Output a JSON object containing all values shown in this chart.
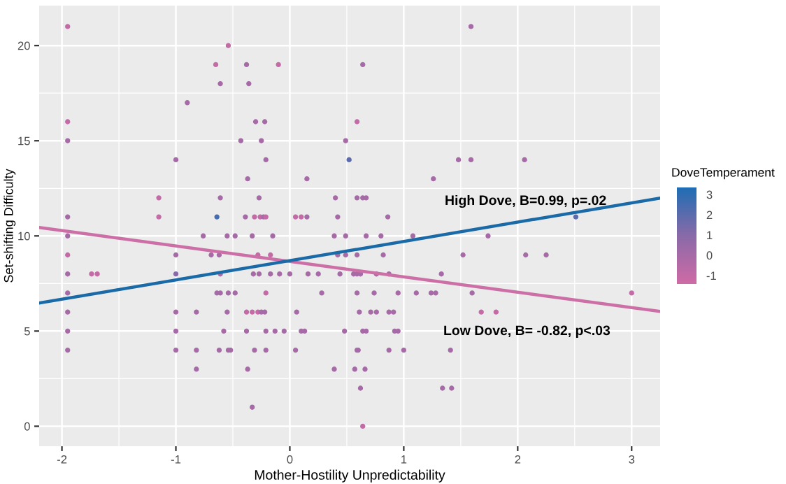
{
  "chart_data": {
    "type": "scatter",
    "xlabel": "Mother-Hostility Unpredictability",
    "ylabel": "Set-shifting Difficulty",
    "clabel": "DoveTemperament",
    "xlim": [
      -2.2,
      3.25
    ],
    "ylim": [
      -1.05,
      22.1
    ],
    "xticks": [
      -2,
      -1,
      0,
      1,
      2,
      3
    ],
    "yticks": [
      0,
      5,
      10,
      15,
      20
    ],
    "clim": [
      -1.42,
      3.35
    ],
    "cticks": [
      -1,
      0,
      1,
      2,
      3
    ],
    "grid": true,
    "series": [
      {
        "marker": "circle",
        "x": [
          -1.95,
          1.59,
          -0.54,
          -0.65,
          -0.38,
          -0.1,
          0.64,
          -0.61,
          -0.36,
          -0.9,
          -1.95,
          -0.3,
          -0.22,
          0.59,
          -1.95,
          -0.43,
          -0.25,
          0.49,
          -1.0,
          -0.21,
          0.52,
          1.48,
          1.59,
          2.06,
          -0.37,
          0.15,
          1.26,
          -1.15,
          -0.61,
          -0.27,
          0.4,
          0.59,
          0.64,
          0.67,
          -1.95,
          -1.15,
          -0.64,
          -0.39,
          -0.31,
          -0.26,
          -0.23,
          -0.21,
          0.05,
          0.1,
          0.15,
          0.42,
          0.86,
          2.51,
          -1.95,
          -0.76,
          -0.55,
          -0.48,
          -0.33,
          -0.15,
          0.39,
          0.49,
          0.67,
          0.8,
          1.08,
          1.74,
          -1.95,
          -1.0,
          -0.69,
          -0.62,
          -0.28,
          -0.17,
          0.42,
          0.49,
          0.59,
          0.82,
          1.52,
          2.07,
          2.25,
          -1.95,
          -1.74,
          -1.69,
          -1.0,
          -0.61,
          -0.32,
          -0.27,
          -0.17,
          -0.09,
          0.0,
          0.16,
          0.25,
          0.44,
          0.56,
          0.59,
          0.62,
          0.76,
          0.87,
          1.33,
          -1.95,
          -0.64,
          -0.61,
          -0.54,
          -0.48,
          -0.21,
          0.28,
          0.59,
          0.74,
          0.95,
          1.11,
          1.24,
          1.28,
          1.6,
          3.0,
          -1.95,
          -1.0,
          -0.82,
          -0.55,
          -0.38,
          -0.33,
          -0.28,
          -0.25,
          -0.22,
          0.06,
          0.61,
          0.71,
          0.76,
          0.87,
          0.91,
          1.68,
          1.81,
          -1.95,
          -1.0,
          -0.58,
          -0.38,
          -0.21,
          -0.13,
          -0.05,
          0.1,
          0.13,
          0.48,
          0.64,
          0.67,
          0.92,
          0.95,
          -1.95,
          -1.0,
          -0.82,
          -0.62,
          -0.54,
          -0.52,
          -0.31,
          -0.21,
          0.05,
          0.59,
          0.6,
          0.87,
          1.0,
          1.41,
          -0.82,
          -0.37,
          0.39,
          0.57,
          0.66,
          0.62,
          1.34,
          1.42,
          -0.33,
          0.64
        ],
        "values": [
          21,
          21,
          20,
          19,
          19,
          19,
          19,
          18,
          18,
          17,
          16,
          16,
          16,
          16,
          15,
          15,
          15,
          15,
          14,
          14,
          14,
          14,
          14,
          14,
          13,
          13,
          13,
          12,
          12,
          12,
          12,
          12,
          12,
          12,
          11,
          11,
          11,
          11,
          11,
          11,
          11,
          11,
          11,
          11,
          11,
          11,
          11,
          11,
          10,
          10,
          10,
          10,
          10,
          10,
          10,
          10,
          10,
          10,
          10,
          10,
          9,
          9,
          9,
          9,
          9,
          9,
          9,
          9,
          9,
          9,
          9,
          9,
          9,
          8,
          8,
          8,
          8,
          8,
          8,
          8,
          8,
          8,
          8,
          8,
          8,
          8,
          8,
          8,
          8,
          8,
          8,
          8,
          7,
          7,
          7,
          7,
          7,
          7,
          7,
          7,
          7,
          7,
          7,
          7,
          7,
          7,
          7,
          6,
          6,
          6,
          6,
          6,
          6,
          6,
          6,
          6,
          6,
          6,
          6,
          6,
          6,
          6,
          6,
          6,
          5,
          5,
          5,
          5,
          5,
          5,
          5,
          5,
          5,
          5,
          5,
          5,
          5,
          5,
          4,
          4,
          4,
          4,
          4,
          4,
          4,
          4,
          4,
          4,
          4,
          4,
          4,
          4,
          3,
          3,
          3,
          3,
          3,
          2,
          2,
          2,
          1,
          0
        ],
        "colors": [
          "#c46aa6",
          "#a66aa7",
          "#c46aa6",
          "#c46aa6",
          "#a66aa7",
          "#c46aa6",
          "#a66aa7",
          "#a66aa7",
          "#a66aa7",
          "#a66aa7",
          "#c46aa6",
          "#a66aa7",
          "#a66aa7",
          "#c46aa6",
          "#a66aa7",
          "#a66aa7",
          "#a66aa7",
          "#a66aa7",
          "#a66aa7",
          "#a66aa7",
          "#5c6bad",
          "#a66aa7",
          "#a66aa7",
          "#a66aa7",
          "#a66aa7",
          "#a66aa7",
          "#a66aa7",
          "#c46aa6",
          "#a66aa7",
          "#a66aa7",
          "#a66aa7",
          "#a66aa7",
          "#a66aa7",
          "#a66aa7",
          "#a66aa7",
          "#c46aa6",
          "#456caf",
          "#a66aa7",
          "#c46aa6",
          "#c46aa6",
          "#a66aa7",
          "#c46aa6",
          "#c46aa6",
          "#c46aa6",
          "#a66aa7",
          "#a66aa7",
          "#a66aa7",
          "#5c6bad",
          "#a66aa7",
          "#a66aa7",
          "#a66aa7",
          "#a66aa7",
          "#a66aa7",
          "#a66aa7",
          "#a66aa7",
          "#a66aa7",
          "#a66aa7",
          "#a66aa7",
          "#a66aa7",
          "#a66aa7",
          "#c46aa6",
          "#a66aa7",
          "#a66aa7",
          "#a66aa7",
          "#c46aa6",
          "#c46aa6",
          "#a66aa7",
          "#a66aa7",
          "#a66aa7",
          "#a66aa7",
          "#a66aa7",
          "#a66aa7",
          "#a66aa7",
          "#a66aa7",
          "#c46aa6",
          "#c46aa6",
          "#886aa8",
          "#a66aa7",
          "#a66aa7",
          "#a66aa7",
          "#a66aa7",
          "#a66aa7",
          "#a66aa7",
          "#a66aa7",
          "#a66aa7",
          "#a66aa7",
          "#a66aa7",
          "#a66aa7",
          "#a66aa7",
          "#a66aa7",
          "#a66aa7",
          "#a66aa7",
          "#a66aa7",
          "#a66aa7",
          "#a66aa7",
          "#a66aa7",
          "#a66aa7",
          "#c46aa6",
          "#a66aa7",
          "#a66aa7",
          "#a66aa7",
          "#a66aa7",
          "#a66aa7",
          "#a66aa7",
          "#a66aa7",
          "#a66aa7",
          "#c46aa6",
          "#a66aa7",
          "#a66aa7",
          "#a66aa7",
          "#a66aa7",
          "#c46aa6",
          "#c46aa6",
          "#c46aa6",
          "#a66aa7",
          "#a66aa7",
          "#a66aa7",
          "#a66aa7",
          "#a66aa7",
          "#a66aa7",
          "#a66aa7",
          "#a66aa7",
          "#c46aa6",
          "#c46aa6",
          "#a66aa7",
          "#a66aa7",
          "#a66aa7",
          "#a66aa7",
          "#a66aa7",
          "#a66aa7",
          "#a66aa7",
          "#a66aa7",
          "#a66aa7",
          "#a66aa7",
          "#a66aa7",
          "#a66aa7",
          "#a66aa7",
          "#a66aa7",
          "#a66aa7",
          "#a66aa7",
          "#a66aa7",
          "#a66aa7",
          "#a66aa7",
          "#a66aa7",
          "#a66aa7",
          "#a66aa7",
          "#a66aa7",
          "#a66aa7",
          "#a66aa7",
          "#a66aa7",
          "#a66aa7",
          "#a66aa7",
          "#a66aa7",
          "#a66aa7",
          "#a66aa7",
          "#a66aa7",
          "#a66aa7",
          "#a66aa7",
          "#a66aa7",
          "#a66aa7",
          "#a66aa7",
          "#c46aa6"
        ]
      },
      {
        "type": "line",
        "color": "#cc6fa6",
        "x": [
          -2.2,
          3.25
        ],
        "values": [
          10.44,
          6.03
        ]
      },
      {
        "type": "line",
        "color": "#1a6aa8",
        "x": [
          -2.2,
          3.25
        ],
        "values": [
          6.47,
          11.99
        ]
      }
    ],
    "annotations": [
      "High Dove, B=0.99, p=.02",
      "Low Dove, B= -0.82, p<.03"
    ]
  }
}
